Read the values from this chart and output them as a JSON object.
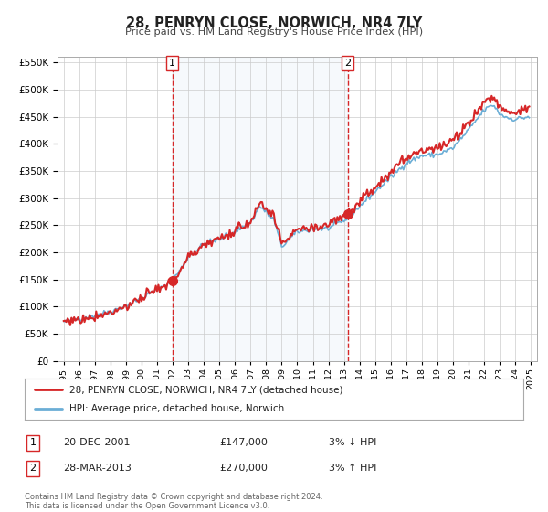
{
  "title": "28, PENRYN CLOSE, NORWICH, NR4 7LY",
  "subtitle": "Price paid vs. HM Land Registry's House Price Index (HPI)",
  "legend_line1": "28, PENRYN CLOSE, NORWICH, NR4 7LY (detached house)",
  "legend_line2": "HPI: Average price, detached house, Norwich",
  "sale1_label": "20-DEC-2001",
  "sale1_price": 147000,
  "sale1_price_str": "£147,000",
  "sale1_hpi": "3% ↓ HPI",
  "sale2_label": "28-MAR-2013",
  "sale2_price": 270000,
  "sale2_price_str": "£270,000",
  "sale2_hpi": "3% ↑ HPI",
  "footer_line1": "Contains HM Land Registry data © Crown copyright and database right 2024.",
  "footer_line2": "This data is licensed under the Open Government Licence v3.0.",
  "hpi_color": "#6baed6",
  "price_color": "#d62728",
  "sale_dot_color": "#d62728",
  "vline_color": "#d62728",
  "shade_color": "#deebf7",
  "bg_color": "#ffffff",
  "grid_color": "#cccccc",
  "ylim_min": 0,
  "ylim_max": 550000
}
